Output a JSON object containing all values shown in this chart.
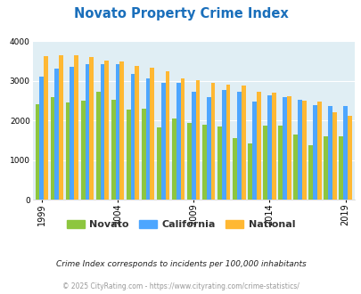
{
  "title": "Novato Property Crime Index",
  "years": [
    1999,
    2000,
    2001,
    2002,
    2003,
    2004,
    2005,
    2006,
    2007,
    2008,
    2009,
    2010,
    2011,
    2012,
    2013,
    2014,
    2015,
    2016,
    2017,
    2018,
    2019
  ],
  "novato": [
    2420,
    2580,
    2450,
    2500,
    2720,
    2520,
    2280,
    2290,
    1820,
    2060,
    1950,
    1900,
    1840,
    1560,
    1430,
    1870,
    1870,
    1640,
    1380,
    1600,
    1600
  ],
  "california": [
    3110,
    3310,
    3360,
    3420,
    3430,
    3430,
    3180,
    3060,
    2960,
    2950,
    2720,
    2600,
    2760,
    2730,
    2480,
    2630,
    2580,
    2530,
    2390,
    2360,
    2360
  ],
  "national": [
    3620,
    3650,
    3650,
    3610,
    3520,
    3490,
    3370,
    3330,
    3250,
    3060,
    3020,
    2960,
    2900,
    2890,
    2730,
    2700,
    2620,
    2510,
    2470,
    2200,
    2110
  ],
  "bar_width": 0.28,
  "color_novato": "#8dc63f",
  "color_california": "#4da6ff",
  "color_national": "#ffb833",
  "bg_color": "#e0eef4",
  "ylim": [
    0,
    4000
  ],
  "yticks": [
    0,
    1000,
    2000,
    3000,
    4000
  ],
  "xtick_years": [
    1999,
    2004,
    2009,
    2014,
    2019
  ],
  "title_color": "#1a6fbb",
  "title_fontsize": 10.5,
  "legend_labels": [
    "Novato",
    "California",
    "National"
  ],
  "footnote1": "Crime Index corresponds to incidents per 100,000 inhabitants",
  "footnote2": "© 2025 CityRating.com - https://www.cityrating.com/crime-statistics/",
  "footnote1_color": "#222222",
  "footnote2_color": "#999999"
}
